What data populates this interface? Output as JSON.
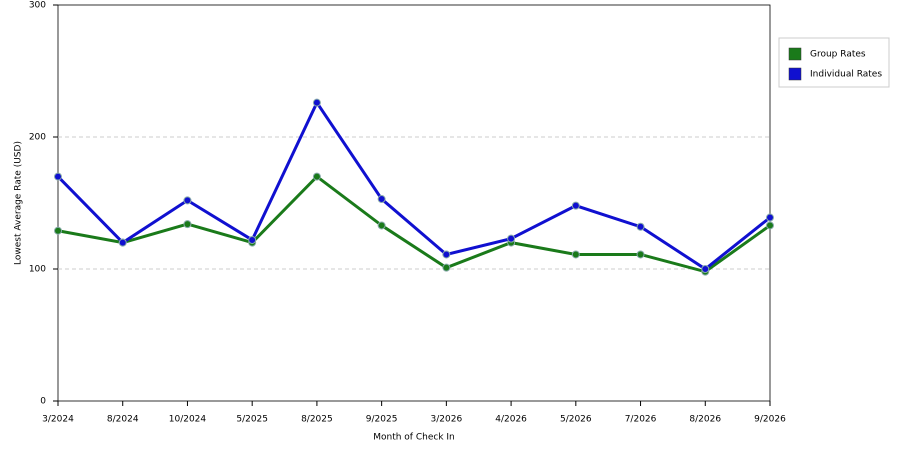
{
  "chart_data": {
    "type": "line",
    "x_label": "Month of Check In",
    "y_label": "Lowest Average Rate (USD)",
    "categories": [
      "3/2024",
      "8/2024",
      "10/2024",
      "5/2025",
      "8/2025",
      "9/2025",
      "3/2026",
      "4/2026",
      "5/2026",
      "7/2026",
      "8/2026",
      "9/2026"
    ],
    "series": [
      {
        "name": "Group Rates",
        "color": "#1a7a1a",
        "values": [
          129,
          120,
          134,
          120,
          170,
          133,
          101,
          120,
          111,
          111,
          98,
          133
        ]
      },
      {
        "name": "Individual Rates",
        "color": "#1010d0",
        "values": [
          170,
          120,
          152,
          122,
          226,
          153,
          111,
          123,
          148,
          132,
          100,
          139
        ]
      }
    ],
    "ylim": [
      0,
      300
    ],
    "yticks": [
      0,
      100,
      200,
      300
    ],
    "grid": true,
    "legend": "right"
  }
}
